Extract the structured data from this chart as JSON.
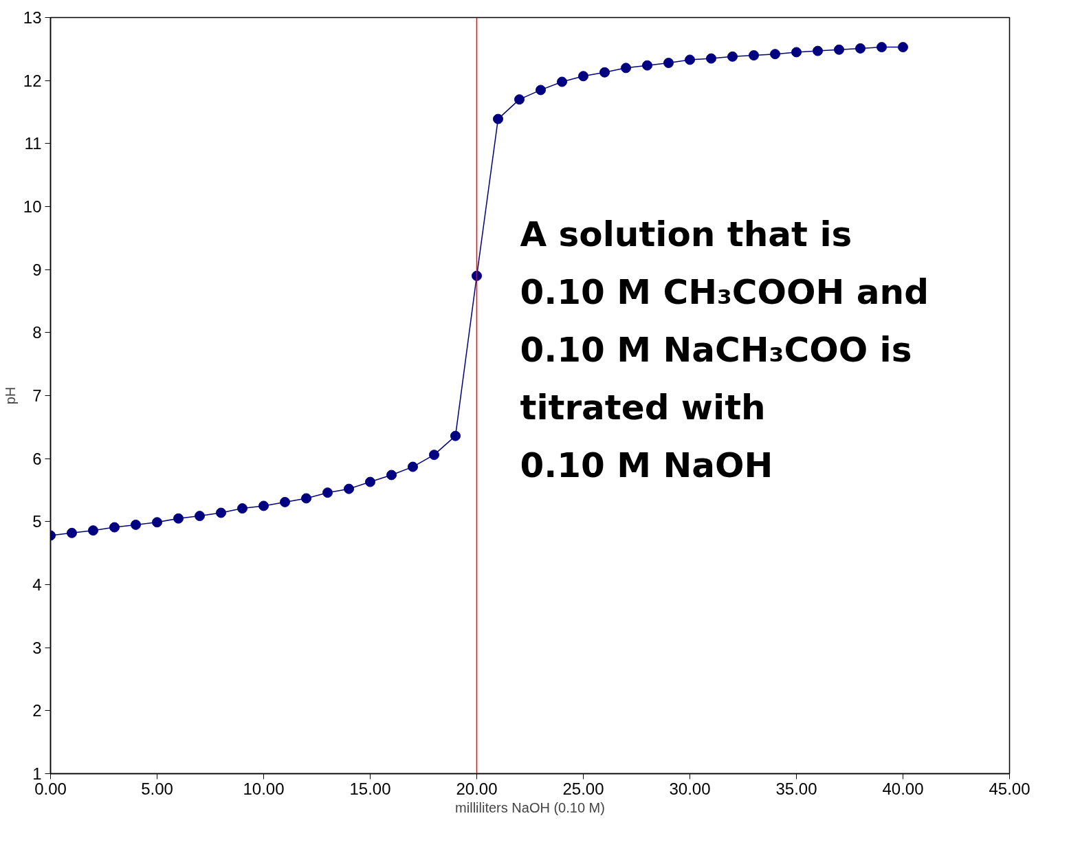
{
  "chart_data": {
    "type": "line",
    "xlabel": "milliliters NaOH (0.10 M)",
    "ylabel": "pH",
    "x": [
      0,
      1,
      2,
      3,
      4,
      5,
      6,
      7,
      8,
      9,
      10,
      11,
      12,
      13,
      14,
      15,
      16,
      17,
      18,
      19,
      20,
      21,
      22,
      23,
      24,
      25,
      26,
      27,
      28,
      29,
      30,
      31,
      32,
      33,
      34,
      35,
      36,
      37,
      38,
      39,
      40
    ],
    "series": [
      {
        "color": "#000080",
        "values": [
          4.78,
          4.82,
          4.86,
          4.91,
          4.95,
          4.99,
          5.05,
          5.09,
          5.14,
          5.21,
          5.25,
          5.31,
          5.37,
          5.46,
          5.52,
          5.63,
          5.74,
          5.87,
          6.06,
          6.36,
          8.9,
          11.39,
          11.7,
          11.85,
          11.98,
          12.07,
          12.13,
          12.2,
          12.24,
          12.28,
          12.33,
          12.35,
          12.38,
          12.4,
          12.42,
          12.45,
          12.47,
          12.49,
          12.51,
          12.53,
          12.53
        ]
      }
    ],
    "marker": "circle",
    "line_style": "solid",
    "xlim": [
      0,
      45
    ],
    "xticks": [
      {
        "value": 0,
        "label": "0.00"
      },
      {
        "value": 5,
        "label": "5.00"
      },
      {
        "value": 10,
        "label": "10.00"
      },
      {
        "value": 15,
        "label": "15.00"
      },
      {
        "value": 20,
        "label": "20.00"
      },
      {
        "value": 25,
        "label": "25.00"
      },
      {
        "value": 30,
        "label": "30.00"
      },
      {
        "value": 35,
        "label": "35.00"
      },
      {
        "value": 40,
        "label": "40.00"
      },
      {
        "value": 45,
        "label": "45.00"
      }
    ],
    "ylim": [
      1,
      13
    ],
    "yticks": [
      1,
      2,
      3,
      4,
      5,
      6,
      7,
      8,
      9,
      10,
      11,
      12,
      13
    ],
    "ref_lines": [
      {
        "axis": "x",
        "value": 20,
        "color": "#ff0000"
      }
    ],
    "annotations": [
      "A solution that is\n0.10 M CH₃COOH and\n0.10 M NaCH₃COO is\ntitrated with\n0.10 M NaOH"
    ]
  }
}
